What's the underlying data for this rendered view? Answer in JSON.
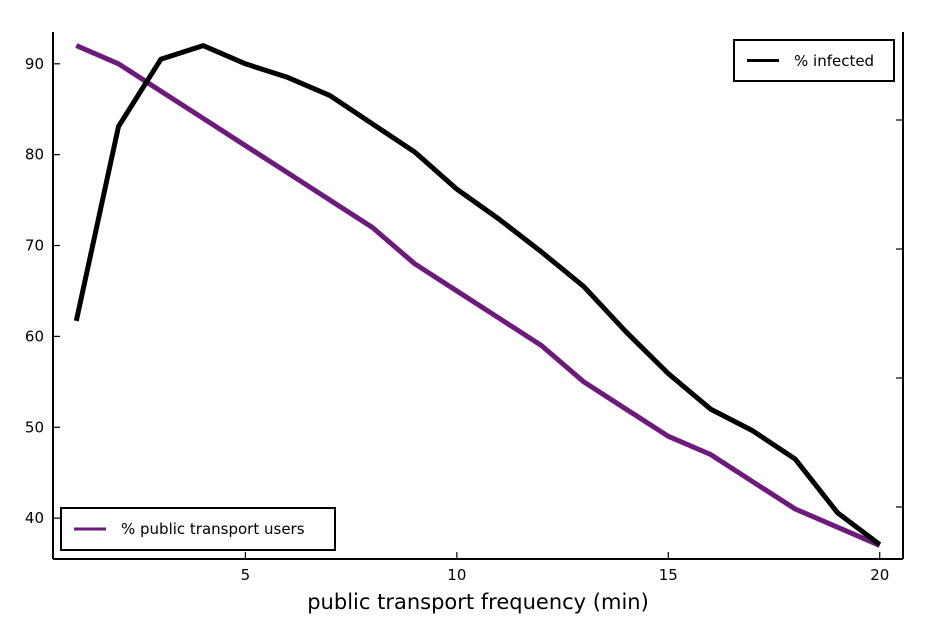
{
  "chart_data": {
    "type": "line",
    "title": "",
    "xlabel": "public transport frequency (min)",
    "ylabel": "",
    "xlim": [
      0.45,
      20.55
    ],
    "ylim": [
      35.5,
      93.5
    ],
    "x_ticks": [
      5,
      10,
      15,
      20
    ],
    "y_ticks": [
      40,
      50,
      60,
      70,
      80,
      90
    ],
    "right_axis_ticks": "unlabeled",
    "grid": false,
    "series": [
      {
        "name": "% public transport users",
        "color": "#6e1a7c",
        "legend_position": "bottom-left",
        "x": [
          1,
          2,
          3,
          4,
          5,
          6,
          7,
          8,
          9,
          10,
          11,
          12,
          13,
          14,
          15,
          16,
          17,
          18,
          19,
          20
        ],
        "y": [
          92,
          90,
          87,
          84,
          81,
          78,
          75,
          72,
          68,
          65,
          62,
          59,
          55,
          52,
          49,
          47,
          44,
          41,
          39,
          37
        ]
      },
      {
        "name": "% infected",
        "color": "#000000",
        "legend_position": "top-right",
        "x": [
          1,
          2,
          3,
          4,
          5,
          6,
          7,
          8,
          9,
          10,
          11,
          12,
          13,
          14,
          15,
          16,
          17,
          18,
          19,
          20
        ],
        "y": [
          61.7,
          83.1,
          90.5,
          92.0,
          90.0,
          88.5,
          86.5,
          83.4,
          80.3,
          76.2,
          72.9,
          69.3,
          65.5,
          60.5,
          55.9,
          52.0,
          49.6,
          46.5,
          40.6,
          37.1
        ]
      }
    ]
  }
}
